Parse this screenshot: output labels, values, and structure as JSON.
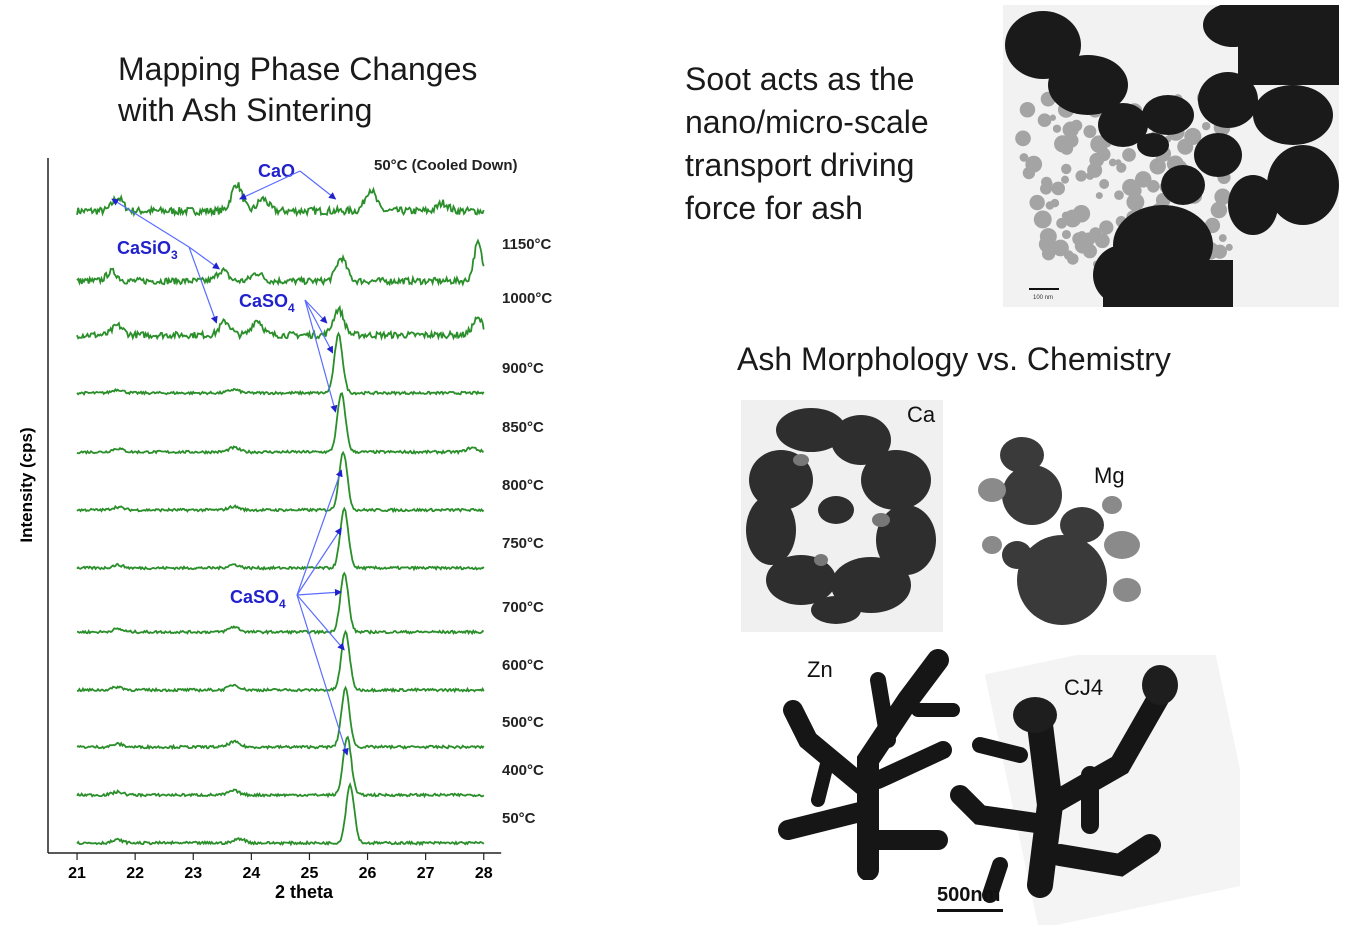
{
  "left_title": {
    "line1": "Mapping Phase Changes",
    "line2": "with Ash Sintering"
  },
  "right_text": {
    "lines": [
      "Soot acts as the",
      "nano/micro-scale",
      "transport driving",
      "force for ash"
    ]
  },
  "right_heading": "Ash Morphology vs. Chemistry",
  "tem_labels": {
    "ca": "Ca",
    "mg": "Mg",
    "zn": "Zn",
    "cj4": "CJ4"
  },
  "scalebar_label": "500nm",
  "soot_scale_label": "100 nm",
  "colors": {
    "trace": "#2a8f2a",
    "annotation": "#2222cc",
    "arrow": "#5b6cff"
  },
  "chart_data": {
    "type": "line",
    "xlabel": "2 theta",
    "ylabel": "Intensity (cps)",
    "xlim": [
      20.5,
      28.3
    ],
    "xticks": [
      21,
      22,
      23,
      24,
      25,
      26,
      27,
      28
    ],
    "grid": false,
    "series": [
      {
        "name": "50°C (Cooled Down)",
        "peaks": [
          [
            21.7,
            0.5
          ],
          [
            23.75,
            1.0
          ],
          [
            24.2,
            0.45
          ],
          [
            26.05,
            0.8
          ],
          [
            27.3,
            0.3
          ]
        ],
        "noise": 0.14
      },
      {
        "name": "1150°C",
        "peaks": [
          [
            21.6,
            0.35
          ],
          [
            23.5,
            0.4
          ],
          [
            24.1,
            0.3
          ],
          [
            25.55,
            0.85
          ],
          [
            27.9,
            1.4
          ]
        ],
        "noise": 0.12
      },
      {
        "name": "1000°C",
        "peaks": [
          [
            21.7,
            0.35
          ],
          [
            23.55,
            0.5
          ],
          [
            24.1,
            0.55
          ],
          [
            25.5,
            0.95
          ],
          [
            27.9,
            0.6
          ]
        ],
        "noise": 0.12
      },
      {
        "name": "900°C",
        "peaks": [
          [
            21.7,
            0.08
          ],
          [
            23.7,
            0.08
          ],
          [
            25.5,
            1.35
          ]
        ],
        "noise": 0.03
      },
      {
        "name": "850°C",
        "peaks": [
          [
            21.7,
            0.08
          ],
          [
            23.7,
            0.1
          ],
          [
            25.55,
            1.35
          ],
          [
            27.8,
            0.1
          ]
        ],
        "noise": 0.03
      },
      {
        "name": "800°C",
        "peaks": [
          [
            21.7,
            0.07
          ],
          [
            23.7,
            0.08
          ],
          [
            25.58,
            1.35
          ]
        ],
        "noise": 0.03
      },
      {
        "name": "750°C",
        "peaks": [
          [
            21.7,
            0.07
          ],
          [
            23.7,
            0.08
          ],
          [
            25.6,
            1.35
          ]
        ],
        "noise": 0.03
      },
      {
        "name": "700°C",
        "peaks": [
          [
            21.7,
            0.07
          ],
          [
            23.7,
            0.12
          ],
          [
            25.6,
            1.35
          ]
        ],
        "noise": 0.03
      },
      {
        "name": "600°C",
        "peaks": [
          [
            21.7,
            0.07
          ],
          [
            23.7,
            0.12
          ],
          [
            25.62,
            1.35
          ]
        ],
        "noise": 0.03
      },
      {
        "name": "500°C",
        "peaks": [
          [
            21.7,
            0.07
          ],
          [
            23.7,
            0.12
          ],
          [
            25.62,
            1.35
          ]
        ],
        "noise": 0.03
      },
      {
        "name": "400°C",
        "peaks": [
          [
            21.7,
            0.07
          ],
          [
            23.7,
            0.1
          ],
          [
            25.65,
            1.35
          ]
        ],
        "noise": 0.03
      },
      {
        "name": "50°C",
        "peaks": [
          [
            21.7,
            0.07
          ],
          [
            23.8,
            0.1
          ],
          [
            25.7,
            1.35
          ]
        ],
        "noise": 0.03
      }
    ],
    "annotations": [
      {
        "text": "CaO",
        "targets": [
          [
            23.8,
            0
          ],
          [
            25.45,
            0
          ]
        ]
      },
      {
        "text": "CaSiO",
        "sub": "3",
        "targets": [
          [
            21.6,
            0
          ],
          [
            23.45,
            1
          ],
          [
            23.4,
            2
          ]
        ]
      },
      {
        "text": "CaSO",
        "sub": "4",
        "targets": [
          [
            25.3,
            2
          ],
          [
            25.4,
            3
          ],
          [
            25.45,
            4
          ]
        ]
      },
      {
        "text": "CaSO",
        "sub": "4",
        "targets": [
          [
            25.55,
            5
          ],
          [
            25.55,
            6
          ],
          [
            25.55,
            7
          ],
          [
            25.6,
            8
          ],
          [
            25.65,
            10
          ]
        ]
      }
    ]
  }
}
